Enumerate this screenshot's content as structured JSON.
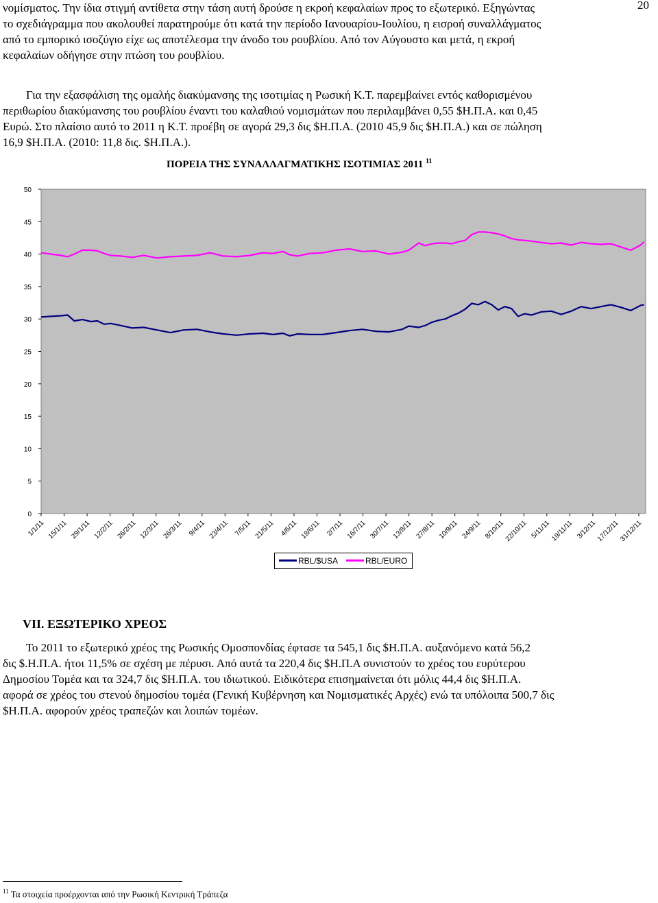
{
  "page_number": "20",
  "paragraph1": [
    "νομίσματος. Την ίδια στιγμή αντίθετα στην τάση αυτή δρούσε η εκροή κεφαλαίων προς το εξωτερικό. Εξηγώντας",
    "το σχεδιάγραμμα που ακολουθεί παρατηρούμε ότι κατά την περίοδο Ιανουαρίου-Ιουλίου, η εισροή συναλλάγματος",
    "από το εμπορικό ισοζύγιο είχε ως αποτέλεσμα την άνοδο του ρουβλίου. Από τον Αύγουστο και μετά, η εκροή",
    "κεφαλαίων οδήγησε στην πτώση του ρουβλίου."
  ],
  "paragraph2": [
    "        Για την εξασφάλιση της ομαλής διακύμανσης της ισοτιμίας η Ρωσική Κ.Τ. παρεμβαίνει εντός καθορισμένου",
    "περιθωρίου διακύμανσης του ρουβλίου έναντι του καλαθιού νομισμάτων που περιλαμβάνει 0,55 $Η.Π.Α. και 0,45",
    "Ευρώ. Στο πλαίσιο αυτό το 2011 η Κ.Τ. προέβη σε αγορά 29,3 δις $Η.Π.Α. (2010 45,9 δις $Η.Π.Α.) και σε πώληση",
    "16,9 $Η.Π.Α. (2010: 11,8 δις. $Η.Π.Α.)."
  ],
  "chart_title": "ΠΟΡΕΙΑ ΤΗΣ ΣΥΝΑΛΛΑΓΜΑΤΙΚΗΣ ΙΣΟΤΙΜΙΑΣ 2011",
  "chart_title_footnote_ref": "11",
  "section_heading": "VII. ΕΞΩΤΕΡΙΚΟ ΧΡΕΟΣ",
  "paragraph3": [
    "        Το 2011 το εξωτερικό χρέος της Ρωσικής Ομοσπονδίας έφτασε τα 545,1 δις $Η.Π.Α. αυξανόμενο κατά 56,2",
    "δις $.Η.Π.Α. ήτοι 11,5% σε σχέση με πέρυσι. Από αυτά τα 220,4 δις $Η.Π.Α συνιστούν το χρέος του ευρύτερου",
    "Δημοσίου Τομέα και τα 324,7 δις $Η.Π.Α. του ιδιωτικού. Ειδικότερα επισημαίνεται ότι μόλις 44,4 δις $Η.Π.Α.",
    "αφορά σε χρέος του στενού δημοσίου τομέα (Γενική Κυβέρνηση και Νομισματικές Αρχές) ενώ τα υπόλοιπα 500,7 δις",
    "$Η.Π.Α. αφορούν χρέος τραπεζών και λοιπών τομέων."
  ],
  "footnote_number": "11",
  "footnote_text": "Τα στοιχεία προέρχονται από την Ρωσική Κεντρική Τράπεζα",
  "chart_data": {
    "type": "line",
    "title": "ΠΟΡΕΙΑ ΤΗΣ ΣΥΝΑΛΛΑΓΜΑΤΙΚΗΣ ΙΣΟΤΙΜΙΑΣ 2011",
    "ylim": [
      0,
      50
    ],
    "yticks": [
      "0",
      "5",
      "10",
      "15",
      "20",
      "25",
      "30",
      "35",
      "40",
      "45",
      "50"
    ],
    "x_tick_labels": [
      "1/1/11",
      "15/1/11",
      "29/1/11",
      "12/2/11",
      "26/2/11",
      "12/3/11",
      "26/3/11",
      "9/4/11",
      "23/4/11",
      "7/5/11",
      "21/5/11",
      "4/6/11",
      "18/6/11",
      "2/7/11",
      "16/7/11",
      "30/7/11",
      "13/8/11",
      "27/8/11",
      "10/9/11",
      "24/9/11",
      "8/10/11",
      "22/10/11",
      "5/11/11",
      "19/11/11",
      "3/12/11",
      "17/12/11",
      "31/12/11"
    ],
    "background": "#c0c0c0",
    "grid": false,
    "legend_position": "bottom",
    "series": [
      {
        "name": "RBL/$USA",
        "color": "#000080",
        "x": [
          0,
          6,
          12,
          16,
          20,
          25,
          30,
          34,
          38,
          42,
          48,
          55,
          62,
          70,
          78,
          86,
          94,
          102,
          110,
          118,
          126,
          134,
          140,
          146,
          150,
          155,
          162,
          170,
          178,
          186,
          194,
          202,
          210,
          218,
          222,
          228,
          232,
          236,
          240,
          244,
          248,
          252,
          256,
          260,
          264,
          268,
          272,
          276,
          280,
          284,
          288,
          292,
          296,
          302,
          308,
          314,
          320,
          326,
          332,
          338,
          344,
          350,
          356,
          362,
          364
        ],
        "y": [
          30.3,
          30.4,
          30.5,
          30.6,
          29.7,
          29.9,
          29.6,
          29.7,
          29.2,
          29.3,
          29.0,
          28.6,
          28.7,
          28.3,
          27.9,
          28.3,
          28.4,
          28.0,
          27.7,
          27.5,
          27.7,
          27.8,
          27.6,
          27.8,
          27.4,
          27.7,
          27.6,
          27.6,
          27.9,
          28.2,
          28.4,
          28.1,
          28.0,
          28.4,
          28.9,
          28.7,
          29.0,
          29.5,
          29.8,
          30.0,
          30.5,
          30.9,
          31.5,
          32.4,
          32.2,
          32.7,
          32.2,
          31.4,
          31.9,
          31.6,
          30.4,
          30.8,
          30.6,
          31.1,
          31.2,
          30.7,
          31.2,
          31.9,
          31.6,
          31.9,
          32.2,
          31.8,
          31.3,
          32.1,
          32.2
        ]
      },
      {
        "name": "RBL/EURO",
        "color": "#ff00ff",
        "x": [
          0,
          6,
          12,
          16,
          20,
          25,
          30,
          34,
          38,
          42,
          48,
          55,
          62,
          70,
          78,
          86,
          94,
          102,
          110,
          118,
          126,
          134,
          140,
          146,
          150,
          155,
          162,
          170,
          178,
          186,
          194,
          202,
          210,
          218,
          222,
          228,
          232,
          236,
          240,
          244,
          248,
          252,
          256,
          260,
          264,
          268,
          272,
          276,
          280,
          284,
          288,
          292,
          296,
          302,
          308,
          314,
          320,
          326,
          332,
          338,
          344,
          350,
          356,
          362,
          364
        ],
        "y": [
          40.2,
          40.0,
          39.8,
          39.6,
          40.0,
          40.6,
          40.6,
          40.5,
          40.1,
          39.8,
          39.7,
          39.5,
          39.8,
          39.4,
          39.6,
          39.7,
          39.8,
          40.2,
          39.7,
          39.6,
          39.8,
          40.2,
          40.1,
          40.4,
          39.9,
          39.7,
          40.1,
          40.2,
          40.6,
          40.8,
          40.4,
          40.5,
          40.0,
          40.3,
          40.6,
          41.7,
          41.3,
          41.6,
          41.7,
          41.7,
          41.6,
          41.9,
          42.1,
          43.0,
          43.4,
          43.4,
          43.3,
          43.1,
          42.8,
          42.4,
          42.2,
          42.1,
          42.0,
          41.8,
          41.6,
          41.7,
          41.4,
          41.8,
          41.6,
          41.5,
          41.6,
          41.1,
          40.6,
          41.4,
          41.9
        ]
      }
    ],
    "x_range": [
      0,
      365
    ]
  }
}
